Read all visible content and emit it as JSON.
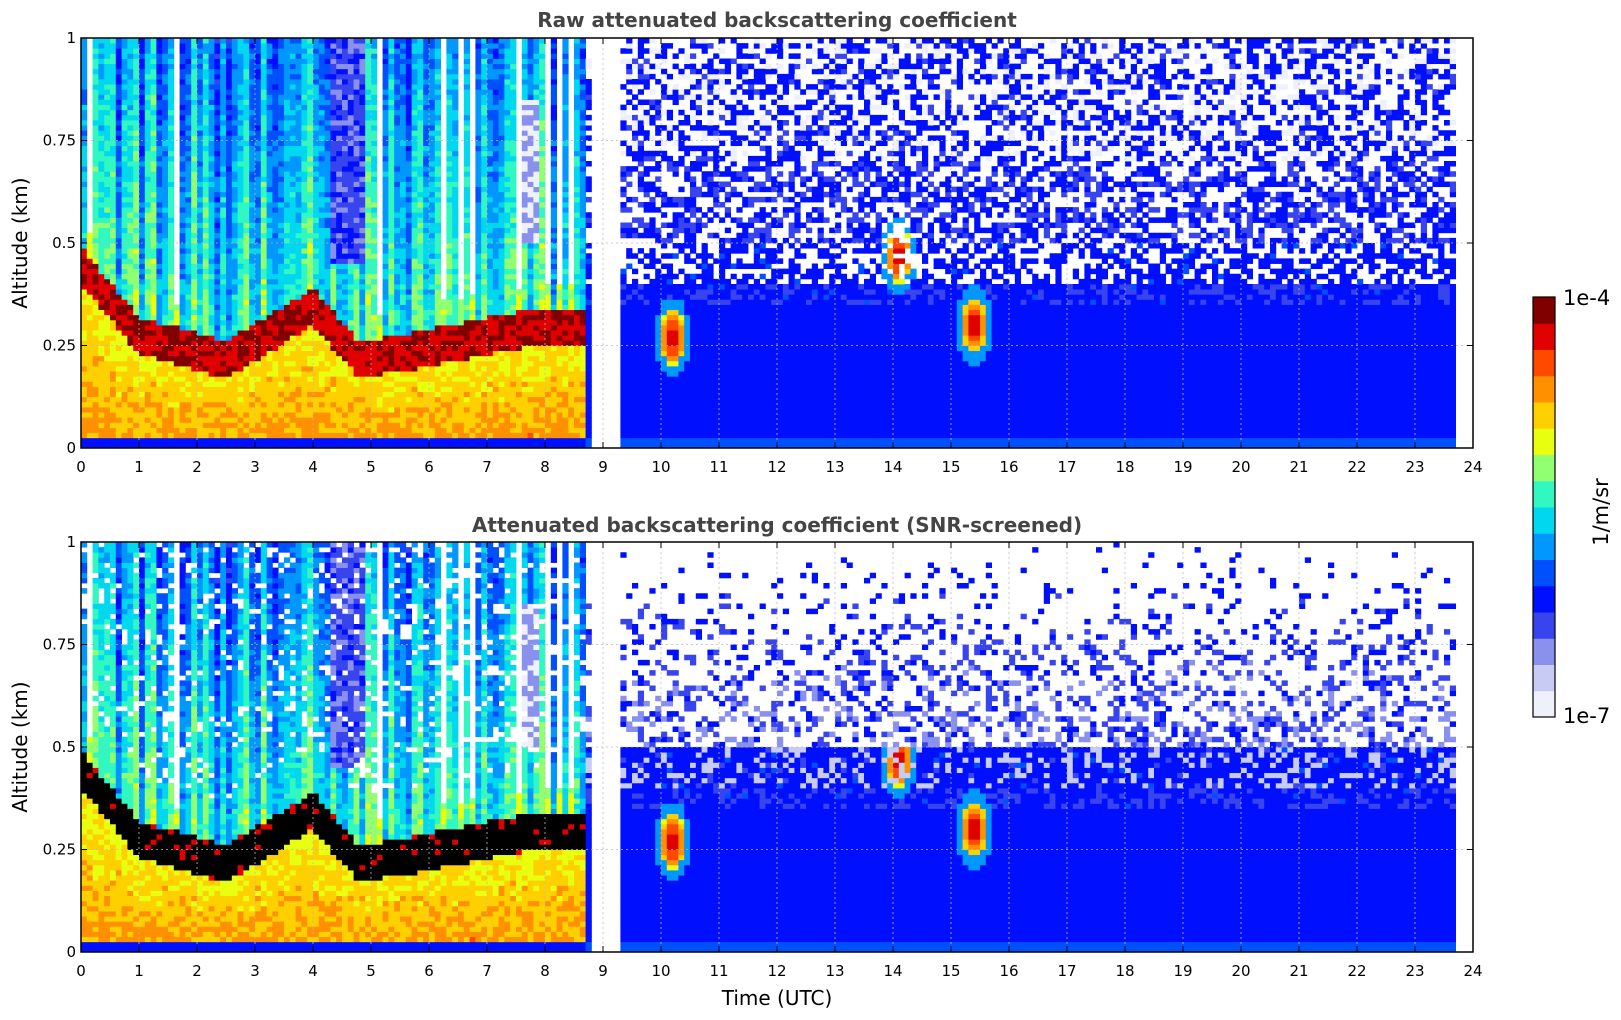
{
  "chart_data": [
    {
      "type": "heatmap",
      "title": "Raw attenuated backscattering coefficient",
      "xlabel": "",
      "ylabel": "Altitude (km)",
      "xlim": [
        0,
        24
      ],
      "ylim": [
        0,
        1
      ],
      "xticks": [
        "0",
        "1",
        "2",
        "3",
        "4",
        "5",
        "6",
        "7",
        "8",
        "9",
        "10",
        "11",
        "12",
        "13",
        "14",
        "15",
        "16",
        "17",
        "18",
        "19",
        "20",
        "21",
        "22",
        "23",
        "24"
      ],
      "yticks": [
        "0",
        "0.25",
        "0.5",
        "0.75",
        "1"
      ],
      "grid": true,
      "features": {
        "data_gap_utc": [
          8.75,
          9.3
        ],
        "boundary_layer_top_km": [
          [
            0.0,
            0.45
          ],
          [
            1.0,
            0.28
          ],
          [
            2.5,
            0.22
          ],
          [
            4.0,
            0.35
          ],
          [
            4.8,
            0.22
          ],
          [
            6.0,
            0.25
          ],
          [
            7.8,
            0.3
          ]
        ],
        "cloud_events": [
          {
            "time_utc": 14.1,
            "altitude_km": 0.47
          },
          {
            "time_utc": 15.4,
            "altitude_km": 0.3
          },
          {
            "time_utc": 10.2,
            "altitude_km": 0.27
          }
        ]
      }
    },
    {
      "type": "heatmap",
      "title": "Attenuated backscattering coefficient (SNR-screened)",
      "xlabel": "Time (UTC)",
      "ylabel": "Altitude (km)",
      "xlim": [
        0,
        24
      ],
      "ylim": [
        0,
        1
      ],
      "xticks": [
        "0",
        "1",
        "2",
        "3",
        "4",
        "5",
        "6",
        "7",
        "8",
        "9",
        "10",
        "11",
        "12",
        "13",
        "14",
        "15",
        "16",
        "17",
        "18",
        "19",
        "20",
        "21",
        "22",
        "23",
        "24"
      ],
      "yticks": [
        "0",
        "0.25",
        "0.5",
        "0.75",
        "1"
      ],
      "grid": true,
      "screened": true
    }
  ],
  "colorbar": {
    "label": "1/m/sr",
    "max_label": "1e-4",
    "min_label": "1e-7",
    "colors": [
      "#eef0fc",
      "#c8ccf4",
      "#8a90ee",
      "#3844ee",
      "#0010ff",
      "#0050ff",
      "#0098ff",
      "#00d8f0",
      "#30f8c0",
      "#90ff70",
      "#e8ff10",
      "#ffd000",
      "#ff9000",
      "#ff4800",
      "#e00000",
      "#800000"
    ]
  }
}
